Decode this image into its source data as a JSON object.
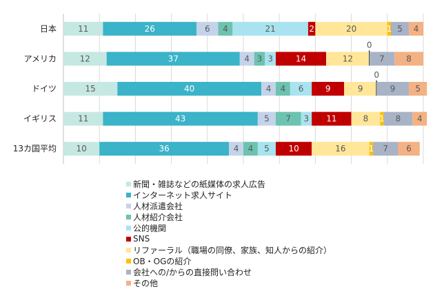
{
  "chart_data": {
    "type": "bar",
    "orientation": "horizontal",
    "stacked": true,
    "categories": [
      "日本",
      "アメリカ",
      "ドイツ",
      "イギリス",
      "13カ国平均"
    ],
    "xlim": [
      0,
      100
    ],
    "grid": true,
    "legend_position": "bottom",
    "series": [
      {
        "name": "新聞・雑誌などの紙媒体の求人広告",
        "color": "#C6E8E2",
        "values": [
          11,
          12,
          15,
          11,
          10
        ]
      },
      {
        "name": "インターネット求人サイト",
        "color": "#3BB3C9",
        "values": [
          26,
          37,
          40,
          43,
          36
        ]
      },
      {
        "name": "人材派遣会社",
        "color": "#C5D3EA",
        "values": [
          6,
          4,
          4,
          5,
          4
        ]
      },
      {
        "name": "人材紹介会社",
        "color": "#6CC3B0",
        "values": [
          4,
          3,
          4,
          7,
          4
        ]
      },
      {
        "name": "公的機関",
        "color": "#A9E3EF",
        "values": [
          21,
          3,
          6,
          3,
          5
        ]
      },
      {
        "name": "SNS",
        "color": "#C00000",
        "values": [
          2,
          14,
          9,
          11,
          10
        ]
      },
      {
        "name": "リファーラル（職場の同僚、家族、知人からの紹介）",
        "color": "#FFE699",
        "values": [
          20,
          12,
          9,
          8,
          16
        ]
      },
      {
        "name": "OB・OGの紹介",
        "color": "#FFC000",
        "values": [
          1,
          0,
          0,
          1,
          1
        ]
      },
      {
        "name": "会社への/からの直接問い合わせ",
        "color": "#A9B3C6",
        "values": [
          5,
          7,
          9,
          8,
          7
        ]
      },
      {
        "name": "その他",
        "color": "#F4B183",
        "values": [
          4,
          8,
          5,
          4,
          6
        ]
      }
    ]
  }
}
